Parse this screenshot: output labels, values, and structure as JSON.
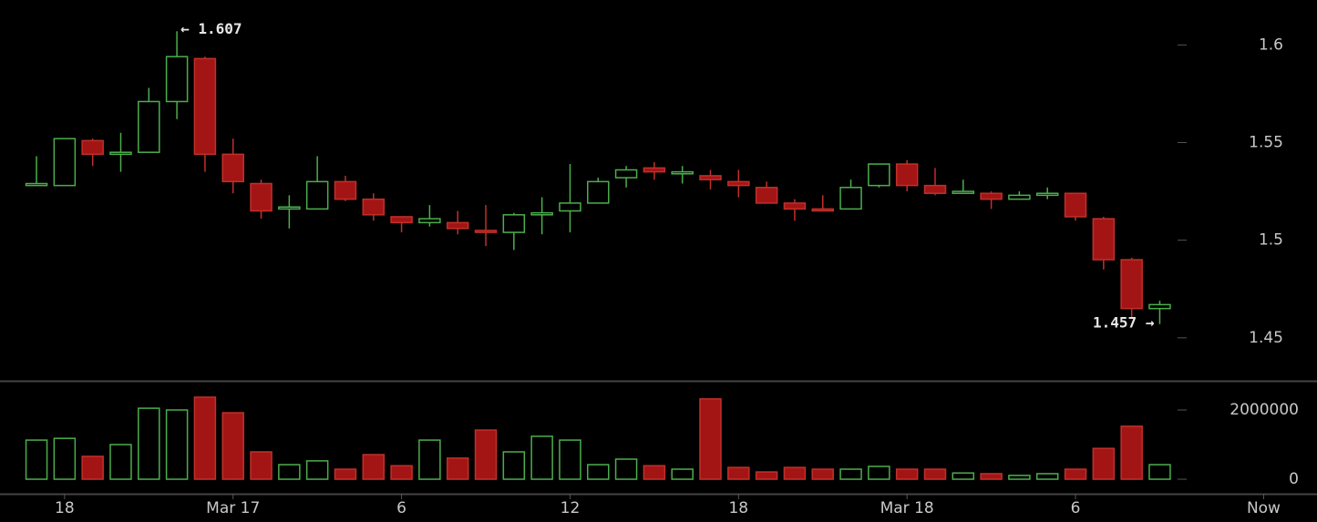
{
  "chart_data": {
    "type": "candlestick",
    "open": [
      1.528,
      1.528,
      1.551,
      1.544,
      1.545,
      1.571,
      1.593,
      1.544,
      1.529,
      1.516,
      1.516,
      1.53,
      1.521,
      1.512,
      1.509,
      1.509,
      1.505,
      1.504,
      1.513,
      1.515,
      1.519,
      1.532,
      1.537,
      1.534,
      1.533,
      1.53,
      1.527,
      1.519,
      1.516,
      1.516,
      1.528,
      1.539,
      1.528,
      1.524,
      1.524,
      1.521,
      1.523,
      1.524,
      1.511,
      1.49,
      1.465
    ],
    "high": [
      1.543,
      1.552,
      1.552,
      1.555,
      1.578,
      1.607,
      1.594,
      1.552,
      1.531,
      1.523,
      1.543,
      1.533,
      1.524,
      1.512,
      1.518,
      1.515,
      1.518,
      1.514,
      1.522,
      1.539,
      1.532,
      1.538,
      1.54,
      1.538,
      1.536,
      1.536,
      1.53,
      1.521,
      1.523,
      1.531,
      1.539,
      1.541,
      1.537,
      1.531,
      1.525,
      1.525,
      1.527,
      1.524,
      1.512,
      1.491,
      1.469
    ],
    "low": [
      1.528,
      1.528,
      1.538,
      1.535,
      1.545,
      1.562,
      1.535,
      1.524,
      1.511,
      1.506,
      1.516,
      1.52,
      1.51,
      1.504,
      1.507,
      1.503,
      1.497,
      1.495,
      1.503,
      1.504,
      1.519,
      1.527,
      1.531,
      1.529,
      1.526,
      1.522,
      1.519,
      1.51,
      1.515,
      1.516,
      1.527,
      1.525,
      1.523,
      1.524,
      1.516,
      1.521,
      1.521,
      1.51,
      1.485,
      1.46,
      1.457
    ],
    "close": [
      1.529,
      1.552,
      1.544,
      1.545,
      1.571,
      1.594,
      1.544,
      1.53,
      1.515,
      1.517,
      1.53,
      1.521,
      1.513,
      1.509,
      1.511,
      1.506,
      1.504,
      1.513,
      1.514,
      1.519,
      1.53,
      1.536,
      1.535,
      1.535,
      1.531,
      1.528,
      1.519,
      1.516,
      1.515,
      1.527,
      1.539,
      1.528,
      1.524,
      1.525,
      1.521,
      1.523,
      1.524,
      1.512,
      1.49,
      1.465,
      1.467
    ],
    "volume": [
      1130000,
      1180000,
      660000,
      1000000,
      2050000,
      2000000,
      2370000,
      1920000,
      790000,
      420000,
      530000,
      290000,
      710000,
      390000,
      1130000,
      610000,
      1420000,
      790000,
      1240000,
      1130000,
      420000,
      580000,
      390000,
      290000,
      2320000,
      340000,
      210000,
      340000,
      290000,
      290000,
      370000,
      290000,
      290000,
      180000,
      160000,
      110000,
      160000,
      290000,
      890000,
      1530000,
      420000
    ],
    "up_color": "#4cae4c",
    "down_color": "#a31515",
    "ylim": [
      1.428,
      1.623
    ],
    "yticks": [
      1.45,
      1.5,
      1.55,
      1.6
    ],
    "volume_ylim": [
      -420000,
      2790000
    ],
    "volume_yticks": [
      0,
      2000000
    ],
    "xlim": [
      -1.3,
      45.6
    ],
    "xticks": [
      {
        "value": 1,
        "label": "18"
      },
      {
        "value": 7,
        "label": "Mar 17"
      },
      {
        "value": 13,
        "label": "6"
      },
      {
        "value": 19,
        "label": "12"
      },
      {
        "value": 25,
        "label": "18"
      },
      {
        "value": 31,
        "label": "Mar 18"
      },
      {
        "value": 37,
        "label": "6"
      },
      {
        "value": 43.7,
        "label": "Now"
      }
    ],
    "annotations": {
      "high": "← 1.607",
      "low": "1.457 →"
    }
  }
}
